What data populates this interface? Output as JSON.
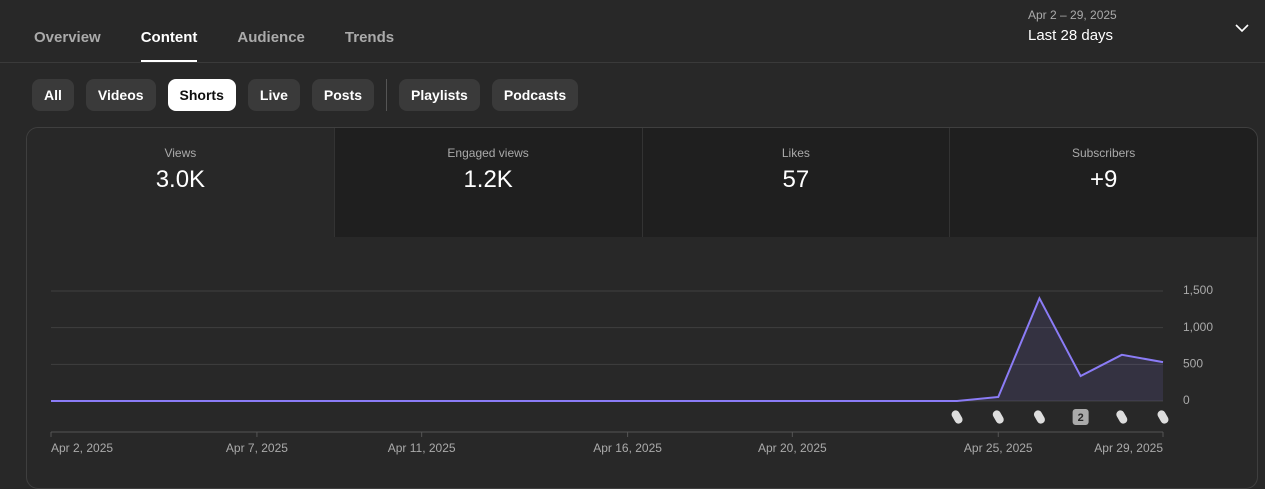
{
  "tabs": [
    "Overview",
    "Content",
    "Audience",
    "Trends"
  ],
  "active_tab": 1,
  "date_range": {
    "dates": "Apr 2 – 29, 2025",
    "label": "Last 28 days"
  },
  "filters": [
    "All",
    "Videos",
    "Shorts",
    "Live",
    "Posts",
    "Playlists",
    "Podcasts"
  ],
  "active_filter": 2,
  "metrics": [
    {
      "label": "Views",
      "value": "3.0K"
    },
    {
      "label": "Engaged views",
      "value": "1.2K"
    },
    {
      "label": "Likes",
      "value": "57"
    },
    {
      "label": "Subscribers",
      "value": "+9"
    }
  ],
  "active_metric": 0,
  "chart_data": {
    "type": "line",
    "categories": [
      "Apr 2, 2025",
      null,
      null,
      null,
      null,
      "Apr 7, 2025",
      null,
      null,
      null,
      "Apr 11, 2025",
      null,
      null,
      null,
      null,
      "Apr 16, 2025",
      null,
      null,
      null,
      "Apr 20, 2025",
      null,
      null,
      null,
      null,
      "Apr 25, 2025",
      null,
      null,
      null,
      "Apr 29, 2025"
    ],
    "series": [
      {
        "name": "Views",
        "color": "#8b7cf6",
        "values": [
          0,
          0,
          0,
          0,
          0,
          0,
          0,
          0,
          0,
          0,
          0,
          0,
          0,
          0,
          0,
          0,
          0,
          0,
          0,
          0,
          0,
          0,
          0,
          55,
          1400,
          340,
          630,
          530
        ]
      }
    ],
    "ylim": [
      0,
      1500
    ],
    "yticks": [
      0,
      500,
      {
        "value": 1000,
        "label": "1,000"
      },
      {
        "value": 1500,
        "label": "1,500"
      }
    ],
    "grid": true,
    "annotation": "2"
  }
}
